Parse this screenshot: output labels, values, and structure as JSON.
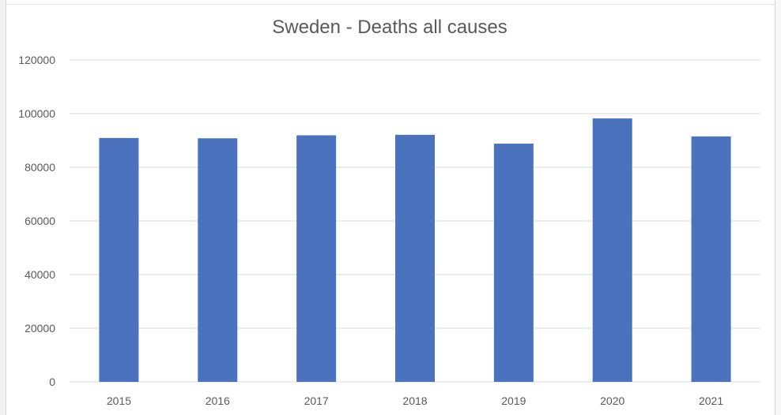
{
  "chart_data": {
    "type": "bar",
    "title": "Sweden - Deaths all causes",
    "xlabel": "",
    "ylabel": "",
    "categories": [
      "2015",
      "2016",
      "2017",
      "2018",
      "2019",
      "2020",
      "2021"
    ],
    "values": [
      90900,
      90800,
      91900,
      92100,
      88800,
      98200,
      91500
    ],
    "ylim": [
      0,
      120000
    ],
    "yticks": [
      "0",
      "20000",
      "40000",
      "60000",
      "80000",
      "100000",
      "120000"
    ],
    "grid": true,
    "legend": "none",
    "bar_color": "#4a72bd",
    "grid_color": "#d9d9d9",
    "text_color": "#595959"
  }
}
